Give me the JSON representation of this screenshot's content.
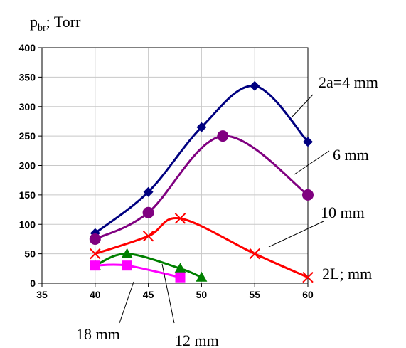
{
  "chart_data": {
    "type": "line",
    "ylabel_main": "p",
    "ylabel_sub": "br",
    "ylabel_rest": "; Torr",
    "xlabel": "2L; mm",
    "xlim": [
      35,
      60
    ],
    "ylim": [
      0,
      400
    ],
    "xticks": [
      "35",
      "40",
      "45",
      "50",
      "55",
      "60"
    ],
    "yticks": [
      "0",
      "50",
      "100",
      "150",
      "200",
      "250",
      "300",
      "350",
      "400"
    ],
    "grid": true,
    "series": [
      {
        "name": "2a=4 mm",
        "color": "#000080",
        "marker": "diamond",
        "x": [
          40,
          45,
          50,
          55,
          60
        ],
        "y": [
          85,
          155,
          265,
          335,
          240
        ]
      },
      {
        "name": "6 mm",
        "color": "#800080",
        "marker": "circle",
        "x": [
          40,
          45,
          52,
          60
        ],
        "y": [
          75,
          120,
          250,
          150
        ]
      },
      {
        "name": "10 mm",
        "color": "#ff0000",
        "marker": "x",
        "x": [
          40,
          45,
          48,
          55,
          60
        ],
        "y": [
          50,
          80,
          110,
          50,
          10
        ]
      },
      {
        "name": "12 mm",
        "color": "#008000",
        "marker": "triangle",
        "x": [
          40,
          43,
          48,
          50
        ],
        "y": [
          30,
          50,
          25,
          10
        ]
      },
      {
        "name": "18 mm",
        "color": "#ff00ff",
        "marker": "square",
        "x": [
          40,
          43,
          48
        ],
        "y": [
          30,
          30,
          10
        ]
      }
    ]
  }
}
